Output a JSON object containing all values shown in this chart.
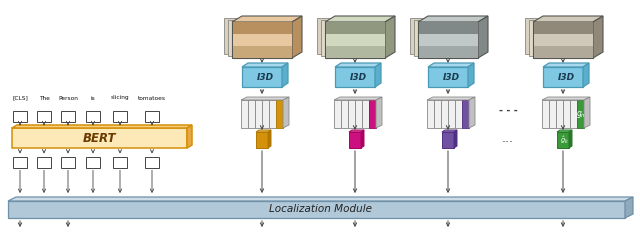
{
  "bg_color": "#ffffff",
  "bert_fill": "#fde8b8",
  "bert_edge": "#d4900a",
  "bert_text": "BERT",
  "i3d_fill": "#7ec8e3",
  "i3d_fill_top": "#a8d8ee",
  "i3d_fill_right": "#5aafcc",
  "i3d_edge": "#4a9ab5",
  "loc_fill": "#b0c8d8",
  "loc_top": "#ccdce8",
  "loc_right": "#90aaba",
  "loc_edge": "#7090a8",
  "loc_text": "Localization Module",
  "token_labels": [
    "[CLS]",
    "The",
    "Person",
    "is",
    "slicing",
    "tomatoes"
  ],
  "sampled_colors": [
    "#d4920a",
    "#cc1080",
    "#7050a0",
    "#3a9a3a"
  ],
  "sampled_colors_dark": [
    "#b07800",
    "#aa0060",
    "#503080",
    "#287828"
  ],
  "sampled_colors_light": [
    "#f0c060",
    "#e060a0",
    "#a080c0",
    "#70cc70"
  ],
  "feat_slice_color": "#e0e0e0",
  "feat_top_color": "#d8d8d8",
  "feat_right_color": "#c0c0c0",
  "feat_edge": "#888888",
  "video_colors": [
    [
      "#8b7355",
      "#c4a882",
      "#d4b896"
    ],
    [
      "#9b8a70",
      "#c8b090",
      "#b89878"
    ],
    [
      "#7a8a7a",
      "#9aaa9a",
      "#c0c8b0"
    ],
    [
      "#8a7a6a",
      "#b8a888",
      "#c8b898"
    ]
  ]
}
